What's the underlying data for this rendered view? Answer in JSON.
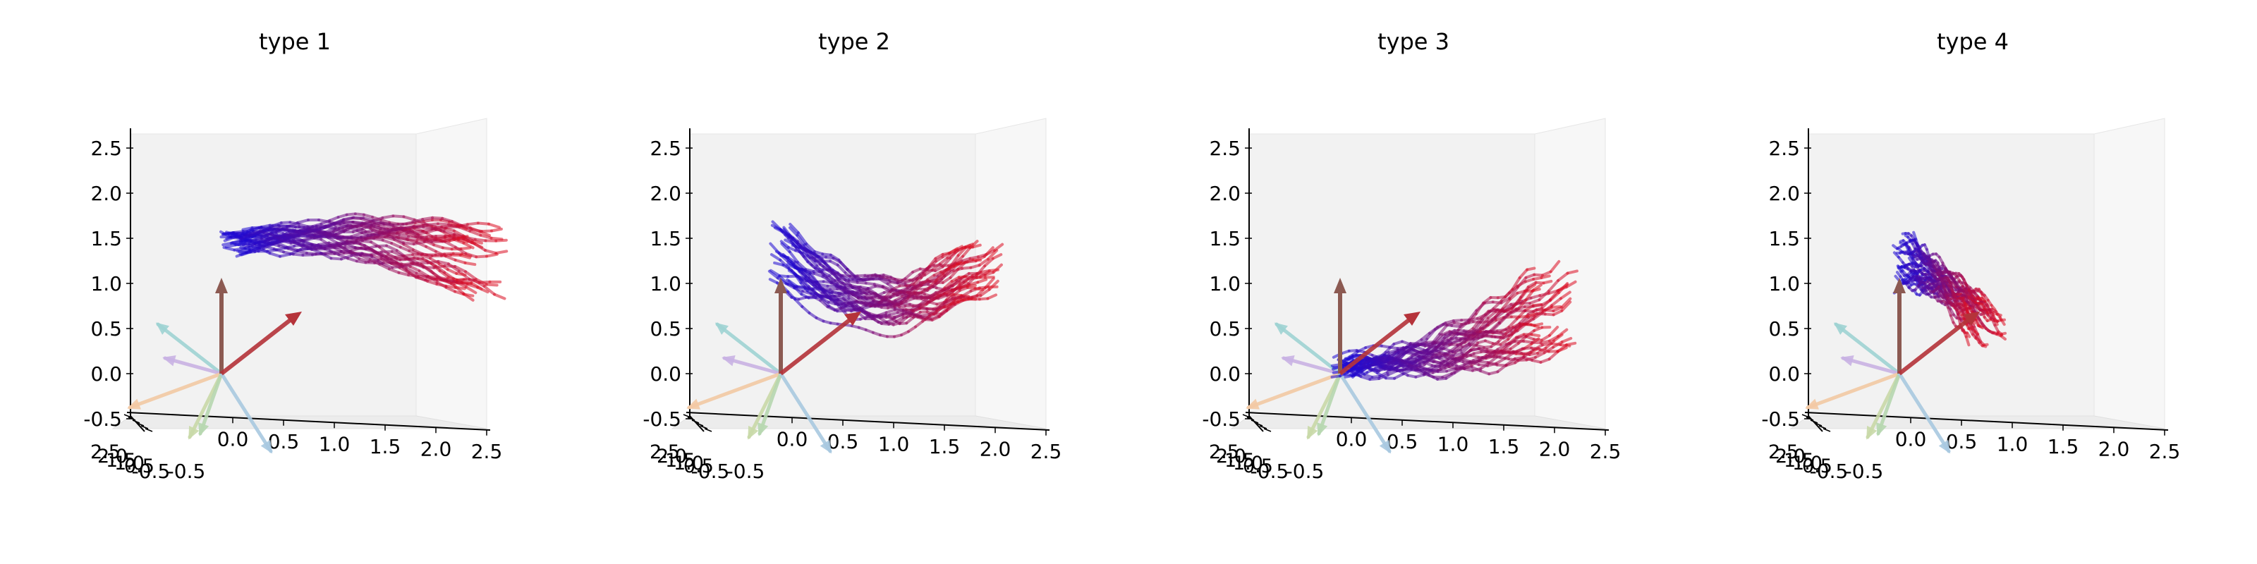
{
  "figure": {
    "panel_titles": [
      "type 1",
      "type 2",
      "type 3",
      "type 4"
    ]
  },
  "chart_data": [
    {
      "type": "3d-line",
      "title": "type 1",
      "xlim": [
        -0.5,
        2.5
      ],
      "ylim": [
        -0.5,
        2.5
      ],
      "zlim": [
        -0.5,
        2.5
      ],
      "x_ticks": [
        "-0.5",
        "0.0",
        "0.5",
        "1.0",
        "1.5",
        "2.0",
        "2.5"
      ],
      "z_ticks": [
        "-0.5",
        "0.0",
        "0.5",
        "1.0",
        "1.5",
        "2.0",
        "2.5"
      ],
      "depth_tick_label": "2.5",
      "trajectories": {
        "count": 30,
        "color_start": "#1a0ad6",
        "color_end": "#e01020",
        "start": [
          0.0,
          1.45
        ],
        "end": [
          2.5,
          1.25
        ],
        "spread_start": 0.25,
        "spread_end": 0.85,
        "bend": 0.15,
        "wiggle": 0.05
      }
    },
    {
      "type": "3d-line",
      "title": "type 2",
      "xlim": [
        -0.5,
        2.5
      ],
      "ylim": [
        -0.5,
        2.5
      ],
      "zlim": [
        -0.5,
        2.5
      ],
      "x_ticks": [
        "-0.5",
        "0.0",
        "0.5",
        "1.0",
        "1.5",
        "2.0",
        "2.5"
      ],
      "z_ticks": [
        "-0.5",
        "0.0",
        "0.5",
        "1.0",
        "1.5",
        "2.0",
        "2.5"
      ],
      "depth_tick_label": "2.5",
      "trajectories": {
        "count": 30,
        "color_start": "#1a0ad6",
        "color_end": "#e01020",
        "start": [
          -0.1,
          1.3
        ],
        "end": [
          1.85,
          1.15
        ],
        "spread_start": 0.75,
        "spread_end": 0.65,
        "bend": -0.45,
        "wiggle": 0.05
      }
    },
    {
      "type": "3d-line",
      "title": "type 3",
      "xlim": [
        -0.5,
        2.5
      ],
      "ylim": [
        -0.5,
        2.5
      ],
      "zlim": [
        -0.5,
        2.5
      ],
      "x_ticks": [
        "-0.5",
        "0.0",
        "0.5",
        "1.0",
        "1.5",
        "2.0",
        "2.5"
      ],
      "z_ticks": [
        "-0.5",
        "0.0",
        "0.5",
        "1.0",
        "1.5",
        "2.0",
        "2.5"
      ],
      "depth_tick_label": "2.5",
      "trajectories": {
        "count": 30,
        "color_start": "#1a0ad6",
        "color_end": "#e01020",
        "start": [
          -0.1,
          0.1
        ],
        "end": [
          2.0,
          0.7
        ],
        "spread_start": 0.2,
        "spread_end": 1.1,
        "bend": -0.15,
        "wiggle": 0.06
      }
    },
    {
      "type": "3d-line",
      "title": "type 4",
      "xlim": [
        -0.5,
        2.5
      ],
      "ylim": [
        -0.5,
        2.5
      ],
      "zlim": [
        -0.5,
        2.5
      ],
      "x_ticks": [
        "-0.5",
        "0.0",
        "0.5",
        "1.0",
        "1.5",
        "2.0",
        "2.5"
      ],
      "z_ticks": [
        "-0.5",
        "0.0",
        "0.5",
        "1.0",
        "1.5",
        "2.0",
        "2.5"
      ],
      "depth_tick_label": "2.5",
      "trajectories": {
        "count": 30,
        "color_start": "#1a0ad6",
        "color_end": "#e01020",
        "start": [
          -0.05,
          1.25
        ],
        "end": [
          0.75,
          0.55
        ],
        "spread_start": 0.7,
        "spread_end": 0.5,
        "bend": 0.1,
        "wiggle": 0.05
      }
    }
  ]
}
